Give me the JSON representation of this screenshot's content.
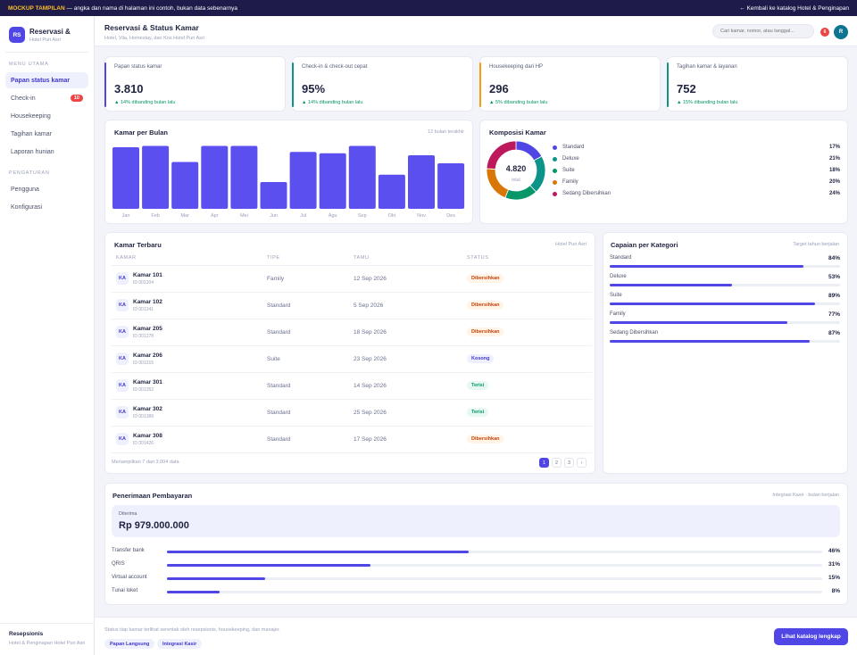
{
  "topbar": {
    "badge": "MOCKUP TAMPILAN",
    "text": " — angka dan nama di halaman ini contoh, bukan data sebenarnya",
    "back_label": "← Kembali ke katalog Hotel & Penginapan"
  },
  "brand": {
    "logo": "RS",
    "title": "Reservasi &",
    "subtitle": "Hotel Puri Asri"
  },
  "sidebar": {
    "section_main": "MENU UTAMA",
    "items": [
      {
        "label": "Papan status kamar"
      },
      {
        "label": "Check-in",
        "count": "10"
      },
      {
        "label": "Housekeeping"
      },
      {
        "label": "Tagihan kamar"
      },
      {
        "label": "Laporan hunian"
      }
    ],
    "section_settings": "PENGATURAN",
    "settings_items": [
      {
        "label": "Pengguna"
      },
      {
        "label": "Konfigurasi"
      }
    ],
    "footer_role": "Resepsionis",
    "footer_hotel": "Hotel & Penginapan Hotel Puri Asri"
  },
  "header": {
    "title": "Reservasi & Status Kamar",
    "subtitle": "Hotel, Vila, Homestay, dan Kos Hotel Puri Asri",
    "search_placeholder": "Cari kamar, nomor, atau tanggal...",
    "notif_count": "6",
    "avatar": "R"
  },
  "kpis": [
    {
      "label": "Papan status kamar",
      "value": "3.810",
      "trend": "▲ 14% dibanding bulan lalu",
      "color": "#4f46e5"
    },
    {
      "label": "Check-in & check-out cepat",
      "value": "95%",
      "trend": "▲ 14% dibanding bulan lalu",
      "color": "#0d9488"
    },
    {
      "label": "Housekeeping dari HP",
      "value": "296",
      "trend": "▲ 5% dibanding bulan lalu",
      "color": "#f59e0b"
    },
    {
      "label": "Tagihan kamar & layanan",
      "value": "752",
      "trend": "▲ 15% dibanding bulan lalu",
      "color": "#0d9488"
    }
  ],
  "bar_chart_meta": {
    "title": "Kamar per Bulan",
    "meta": "12 bulan terakhir"
  },
  "chart_data": [
    {
      "type": "bar",
      "title": "Kamar per Bulan",
      "categories": [
        "Jan",
        "Feb",
        "Mar",
        "Apr",
        "Mei",
        "Jun",
        "Jul",
        "Agu",
        "Sep",
        "Okt",
        "Nov",
        "Des"
      ],
      "values": [
        92,
        94,
        70,
        94,
        94,
        40,
        85,
        83,
        94,
        51,
        80,
        68
      ],
      "ylim": [
        0,
        100
      ],
      "grid": false,
      "color": "#5b50ef"
    },
    {
      "type": "pie",
      "title": "Komposisi Kamar",
      "center_value": "4.820",
      "center_label": "total",
      "labels": [
        "Standard",
        "Deluxe",
        "Suite",
        "Family",
        "Sedang Dibersihkan"
      ],
      "values": [
        17,
        21,
        18,
        20,
        24
      ],
      "colors": [
        "#4f46e5",
        "#0d9488",
        "#059669",
        "#d97706",
        "#be185d"
      ],
      "legend": "right"
    }
  ],
  "donut_meta": {
    "title": "Komposisi Kamar"
  },
  "rooms": {
    "title": "Kamar Terbaru",
    "meta": "Hotel Puri Asri",
    "columns": [
      "KAMAR",
      "TIPE",
      "TAMU",
      "STATUS"
    ],
    "rows": [
      {
        "initials": "KA",
        "name": "Kamar 101",
        "id": "ID 001204",
        "type": "Family",
        "date": "12 Sep 2026",
        "status": "Dibersihkan",
        "tone": "orange"
      },
      {
        "initials": "KA",
        "name": "Kamar 102",
        "id": "ID 001241",
        "type": "Standard",
        "date": "5 Sep 2026",
        "status": "Dibersihkan",
        "tone": "orange"
      },
      {
        "initials": "KA",
        "name": "Kamar 205",
        "id": "ID 001278",
        "type": "Standard",
        "date": "18 Sep 2026",
        "status": "Dibersihkan",
        "tone": "orange"
      },
      {
        "initials": "KA",
        "name": "Kamar 206",
        "id": "ID 001315",
        "type": "Suite",
        "date": "23 Sep 2026",
        "status": "Kosong",
        "tone": "blue"
      },
      {
        "initials": "KA",
        "name": "Kamar 301",
        "id": "ID 001352",
        "type": "Standard",
        "date": "14 Sep 2026",
        "status": "Terisi",
        "tone": "green"
      },
      {
        "initials": "KA",
        "name": "Kamar 302",
        "id": "ID 001389",
        "type": "Standard",
        "date": "25 Sep 2026",
        "status": "Terisi",
        "tone": "green"
      },
      {
        "initials": "KA",
        "name": "Kamar 308",
        "id": "ID 001426",
        "type": "Standard",
        "date": "17 Sep 2026",
        "status": "Dibersihkan",
        "tone": "orange"
      }
    ],
    "footer": "Menampilkan 7 dari 3.004 data",
    "pages": [
      "1",
      "2",
      "3",
      "›"
    ]
  },
  "categories": {
    "title": "Capaian per Kategori",
    "meta": "Target tahun berjalan",
    "items": [
      {
        "name": "Standard",
        "pct": "84%",
        "value": 84
      },
      {
        "name": "Deluxe",
        "pct": "53%",
        "value": 53
      },
      {
        "name": "Suite",
        "pct": "89%",
        "value": 89
      },
      {
        "name": "Family",
        "pct": "77%",
        "value": 77
      },
      {
        "name": "Sedang Dibersihkan",
        "pct": "87%",
        "value": 87
      }
    ]
  },
  "payments": {
    "title": "Penerimaan Pembayaran",
    "meta": "Integrasi Kasir · bulan berjalan",
    "received_label": "Diterima",
    "received_value": "Rp 979.000.000",
    "items": [
      {
        "name": "Transfer bank",
        "pct": "46%",
        "value": 46
      },
      {
        "name": "QRIS",
        "pct": "31%",
        "value": 31
      },
      {
        "name": "Virtual account",
        "pct": "15%",
        "value": 15
      },
      {
        "name": "Tunai loket",
        "pct": "8%",
        "value": 8
      }
    ]
  },
  "footer": {
    "note": "Status tiap kamar terlihat serentak oleh resepsionis, housekeeping, dan manajer.",
    "tags": [
      "Papan Langsung",
      "Integrasi Kasir"
    ],
    "cta": "Lihat katalog lengkap"
  }
}
